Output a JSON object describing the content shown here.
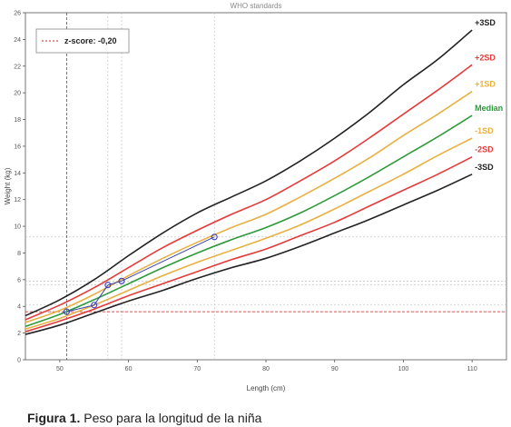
{
  "chart_data": {
    "type": "line",
    "title": "WHO standards",
    "xlabel": "Length (cm)",
    "ylabel": "Weight (kg)",
    "xlim": [
      45,
      115
    ],
    "ylim": [
      0,
      26
    ],
    "xticks": [
      50,
      60,
      70,
      80,
      90,
      100,
      110
    ],
    "yticks": [
      0,
      2,
      4,
      6,
      8,
      10,
      12,
      14,
      16,
      18,
      20,
      22,
      24,
      26
    ],
    "grid": false,
    "legend": {
      "position": "top-left",
      "label": "z-score: -0,20",
      "color": "#cc2222"
    },
    "reference_lines": {
      "x": 51,
      "y": 3.6,
      "color": "#cc2222"
    },
    "dotted_reference_y": [
      3.6,
      4.1,
      5.6,
      5.9,
      9.2
    ],
    "dotted_reference_x": [
      57,
      59,
      72.5
    ],
    "series": [
      {
        "name": "+3SD",
        "color": "#222222",
        "x": [
          45,
          50,
          55,
          60,
          65,
          70,
          75,
          80,
          85,
          90,
          95,
          100,
          105,
          110
        ],
        "y": [
          3.3,
          4.5,
          6.0,
          7.8,
          9.5,
          11.0,
          12.2,
          13.4,
          14.9,
          16.6,
          18.5,
          20.6,
          22.5,
          24.7
        ]
      },
      {
        "name": "+2SD",
        "color": "#e53a3a",
        "x": [
          45,
          50,
          55,
          60,
          65,
          70,
          75,
          80,
          85,
          90,
          95,
          100,
          105,
          110
        ],
        "y": [
          3.0,
          4.1,
          5.4,
          6.9,
          8.4,
          9.7,
          10.9,
          12.0,
          13.4,
          14.9,
          16.6,
          18.4,
          20.2,
          22.1
        ]
      },
      {
        "name": "+1SD",
        "color": "#e8b040",
        "x": [
          45,
          50,
          55,
          60,
          65,
          70,
          75,
          80,
          85,
          90,
          95,
          100,
          105,
          110
        ],
        "y": [
          2.8,
          3.7,
          4.9,
          6.3,
          7.6,
          8.8,
          9.9,
          10.9,
          12.2,
          13.6,
          15.1,
          16.8,
          18.4,
          20.1
        ]
      },
      {
        "name": "Median",
        "color": "#2e9a3a",
        "x": [
          45,
          50,
          55,
          60,
          65,
          70,
          75,
          80,
          85,
          90,
          95,
          100,
          105,
          110
        ],
        "y": [
          2.5,
          3.4,
          4.5,
          5.7,
          6.9,
          8.0,
          9.0,
          9.9,
          11.0,
          12.3,
          13.7,
          15.2,
          16.7,
          18.3
        ]
      },
      {
        "name": "-1SD",
        "color": "#e8b040",
        "x": [
          45,
          50,
          55,
          60,
          65,
          70,
          75,
          80,
          85,
          90,
          95,
          100,
          105,
          110
        ],
        "y": [
          2.3,
          3.1,
          4.1,
          5.2,
          6.3,
          7.3,
          8.2,
          9.1,
          10.1,
          11.3,
          12.6,
          13.9,
          15.3,
          16.6
        ]
      },
      {
        "name": "-2SD",
        "color": "#e53a3a",
        "x": [
          45,
          50,
          55,
          60,
          65,
          70,
          75,
          80,
          85,
          90,
          95,
          100,
          105,
          110
        ],
        "y": [
          2.1,
          2.9,
          3.8,
          4.8,
          5.7,
          6.6,
          7.5,
          8.3,
          9.3,
          10.3,
          11.5,
          12.7,
          13.9,
          15.2
        ]
      },
      {
        "name": "-3SD",
        "color": "#222222",
        "x": [
          45,
          50,
          55,
          60,
          65,
          70,
          75,
          80,
          85,
          90,
          95,
          100,
          105,
          110
        ],
        "y": [
          1.9,
          2.6,
          3.5,
          4.4,
          5.2,
          6.1,
          6.9,
          7.6,
          8.5,
          9.5,
          10.5,
          11.6,
          12.7,
          13.9
        ]
      },
      {
        "name": "",
        "color": "#3b3fb5",
        "marker": "circle",
        "x": [
          51,
          55,
          57,
          59,
          72.5
        ],
        "y": [
          3.6,
          4.1,
          5.6,
          5.9,
          9.2
        ]
      }
    ]
  },
  "caption": {
    "label": "Figura 1.",
    "text": " Peso para la longitud de la niña"
  }
}
